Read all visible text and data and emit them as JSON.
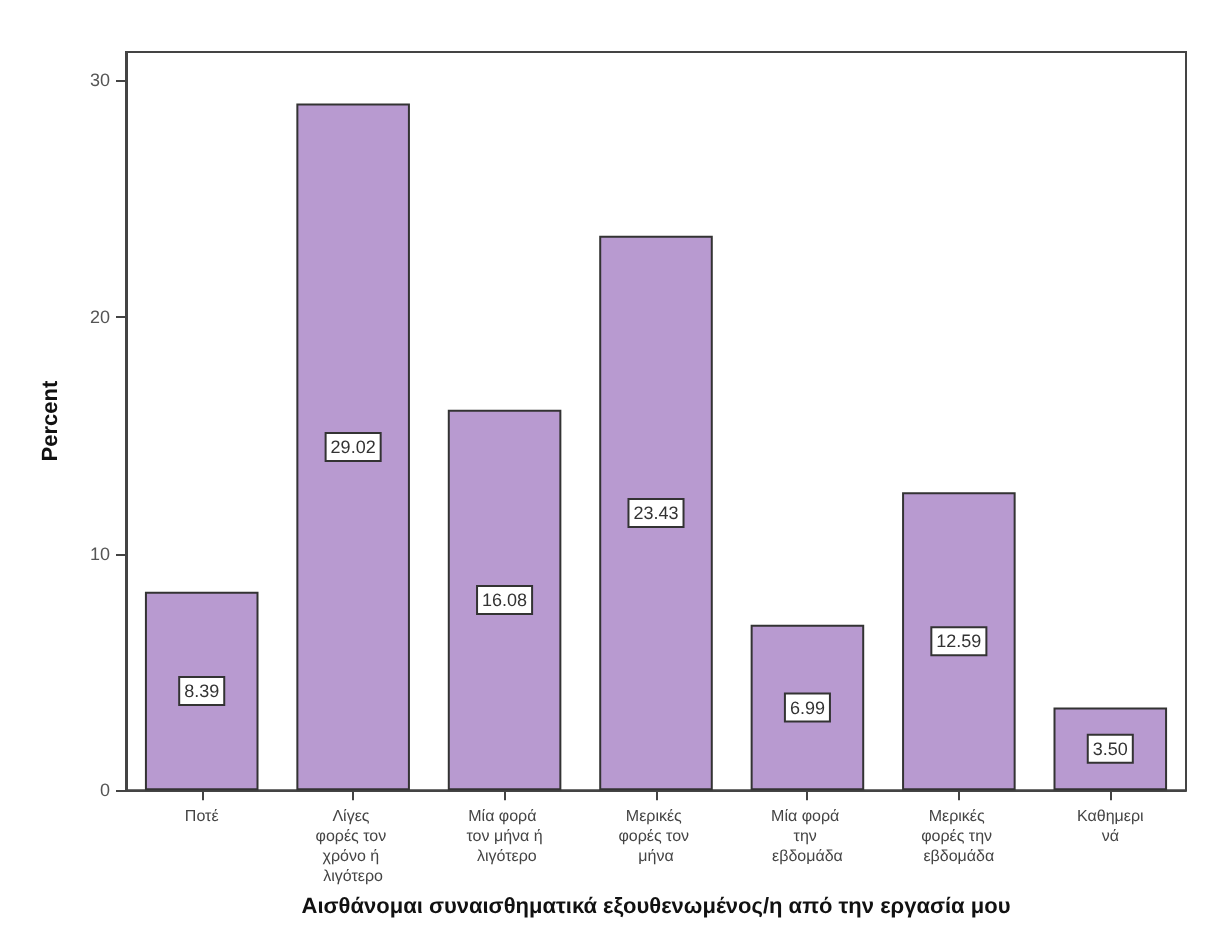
{
  "chart_data": {
    "type": "bar",
    "xlabel": "Αισθάνομαι συναισθηματικά εξουθενωμένος/η από την εργασία μου",
    "ylabel": "Percent",
    "categories": [
      "Ποτέ",
      "Λίγες φορές τον χρόνο ή λιγότερο",
      "Μία φορά τον μήνα ή λιγότερο",
      "Μερικές φορές τον μήνα",
      "Μία φορά την εβδομάδα",
      "Μερικές φορές την εβδομάδα",
      "Καθημερινά"
    ],
    "values": [
      8.39,
      29.02,
      16.08,
      23.43,
      6.99,
      12.59,
      3.5
    ],
    "value_labels": [
      "8.39",
      "29.02",
      "16.08",
      "23.43",
      "6.99",
      "12.59",
      "3.50"
    ],
    "color": "#b89ad0",
    "ylim": [
      0,
      31.2
    ],
    "yticks": [
      0,
      10,
      20,
      30
    ],
    "grid": false
  }
}
